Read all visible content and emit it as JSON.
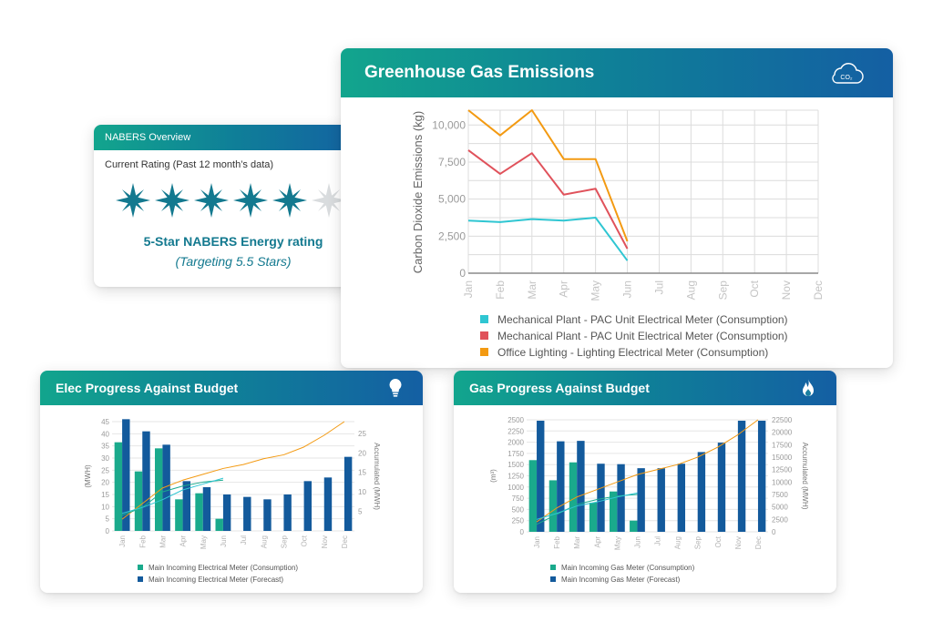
{
  "colors": {
    "teal": "#1aaa8c",
    "navy": "#135a9c",
    "cyan_line": "#2fc6d2",
    "red_line": "#e0525b",
    "orange_line": "#f39a12",
    "star_active": "#13798f",
    "star_inactive": "#d9dcde",
    "grid": "#dcdcdc",
    "tick": "#9a9a9a"
  },
  "icons": {
    "nabers": "sparkle-star-icon",
    "ghg": "co2-cloud-icon",
    "elec": "lightbulb-icon",
    "gas": "flame-icon"
  },
  "nabers": {
    "title": "NABERS Overview",
    "subtitle": "Current Rating (Past 12 month’s data)",
    "stars_filled": 5,
    "stars_total": 6,
    "rating_text": "5-Star NABERS Energy rating",
    "target_text": "(Targeting 5.5 Stars)"
  },
  "ghg": {
    "title": "Greenhouse Gas Emissions",
    "co2_label": "CO₂"
  },
  "elec": {
    "title": "Elec Progress Against Budget"
  },
  "gas": {
    "title": "Gas Progress Against Budget"
  },
  "chart_data": [
    {
      "id": "ghg",
      "type": "line",
      "title": "Greenhouse Gas Emissions",
      "ylabel": "Carbon Dioxide Emissions (kg)",
      "ylim": [
        0,
        11000
      ],
      "yticks": [
        0,
        2500,
        5000,
        7500,
        10000
      ],
      "ytick_labels": [
        "0",
        "2,500",
        "5,000",
        "7,500",
        "10,000"
      ],
      "categories": [
        "Jan",
        "Feb",
        "Mar",
        "Apr",
        "May",
        "Jun",
        "Jul",
        "Aug",
        "Sep",
        "Oct",
        "Nov",
        "Dec"
      ],
      "grid": true,
      "legend_position": "bottom",
      "series": [
        {
          "name": "Mechanical Plant - PAC Unit Electrical Meter (Consumption)",
          "color": "#2fc6d2",
          "values": [
            3550,
            3450,
            3650,
            3550,
            3750,
            850,
            null,
            null,
            null,
            null,
            null,
            null
          ]
        },
        {
          "name": "Mechanical Plant - PAC Unit Electrical Meter (Consumption)",
          "color": "#e0525b",
          "values": [
            8300,
            6700,
            8100,
            5300,
            5700,
            1650,
            null,
            null,
            null,
            null,
            null,
            null
          ]
        },
        {
          "name": "Office Lighting - Lighting Electrical Meter (Consumption)",
          "color": "#f39a12",
          "values": [
            11000,
            9300,
            11000,
            7700,
            7700,
            2150,
            null,
            null,
            null,
            null,
            null,
            null
          ]
        }
      ]
    },
    {
      "id": "elec",
      "type": "bar",
      "ylabel": "(MWH)",
      "y2label": "Accumulated (MWH)",
      "ylim": [
        0,
        45
      ],
      "yticks": [
        0,
        5,
        10,
        15,
        20,
        25,
        30,
        35,
        40,
        45
      ],
      "y2lim": [
        0,
        28
      ],
      "y2ticks": [
        5,
        10,
        15,
        20,
        25
      ],
      "categories": [
        "Jan",
        "Feb",
        "Mar",
        "Apr",
        "May",
        "Jun",
        "Jul",
        "Aug",
        "Sep",
        "Oct",
        "Nov",
        "Dec"
      ],
      "grid": true,
      "legend_position": "bottom",
      "series": [
        {
          "name": "Main Incoming Electrical Meter (Consumption)",
          "color": "#1aaa8c",
          "values": [
            36.5,
            24.5,
            34,
            13,
            15.5,
            5,
            null,
            null,
            null,
            null,
            null,
            null
          ]
        },
        {
          "name": "Main Incoming Electrical Meter (Forecast)",
          "color": "#135a9c",
          "values": [
            46,
            41,
            35.5,
            20.5,
            18,
            15,
            14,
            13,
            15,
            20.5,
            22,
            30.5
          ]
        }
      ],
      "accumulated_lines": [
        {
          "color": "#f39a12",
          "values": [
            3,
            7,
            11,
            13,
            14.5,
            16,
            17,
            18.5,
            19.5,
            21.5,
            24.5,
            28
          ]
        },
        {
          "color": "#1aaa8c",
          "values": [
            4,
            6,
            10,
            11.5,
            12.5,
            13,
            null,
            null,
            null,
            null,
            null,
            null
          ]
        },
        {
          "color": "#2fc6d2",
          "values": [
            4.5,
            6,
            8,
            10.5,
            12,
            13.5,
            null,
            null,
            null,
            null,
            null,
            null
          ]
        }
      ]
    },
    {
      "id": "gas",
      "type": "bar",
      "ylabel": "(m³)",
      "y2label": "Accumulated (MWH)",
      "ylim": [
        0,
        2500
      ],
      "yticks": [
        0,
        250,
        500,
        750,
        1000,
        1250,
        1500,
        1750,
        2000,
        2250,
        2500
      ],
      "y2lim": [
        0,
        22500
      ],
      "y2ticks": [
        0,
        2500,
        5000,
        7500,
        10000,
        12500,
        15000,
        17500,
        20000,
        22500
      ],
      "categories": [
        "Jan",
        "Feb",
        "Mar",
        "Apr",
        "May",
        "Jun",
        "Jul",
        "Aug",
        "Sep",
        "Oct",
        "Nov",
        "Dec"
      ],
      "grid": true,
      "legend_position": "bottom",
      "series": [
        {
          "name": "Main Incoming Gas Meter (Consumption)",
          "color": "#1aaa8c",
          "values": [
            1600,
            1150,
            1550,
            650,
            900,
            250,
            null,
            null,
            null,
            null,
            null,
            null
          ]
        },
        {
          "name": "Main Incoming Gas Meter (Forecast)",
          "color": "#135a9c",
          "values": [
            2480,
            2020,
            2030,
            1520,
            1510,
            1420,
            1420,
            1520,
            1780,
            1990,
            2480,
            2480
          ]
        }
      ],
      "accumulated_lines": [
        {
          "color": "#f39a12",
          "values": [
            2000,
            4800,
            7000,
            8500,
            10000,
            11500,
            12500,
            13500,
            15000,
            17000,
            19500,
            22500
          ]
        },
        {
          "color": "#1aaa8c",
          "values": [
            1500,
            3500,
            5500,
            6500,
            7200,
            7500,
            null,
            null,
            null,
            null,
            null,
            null
          ]
        },
        {
          "color": "#2fc6d2",
          "values": [
            2500,
            3700,
            5200,
            6000,
            7000,
            7800,
            null,
            null,
            null,
            null,
            null,
            null
          ]
        }
      ]
    }
  ]
}
